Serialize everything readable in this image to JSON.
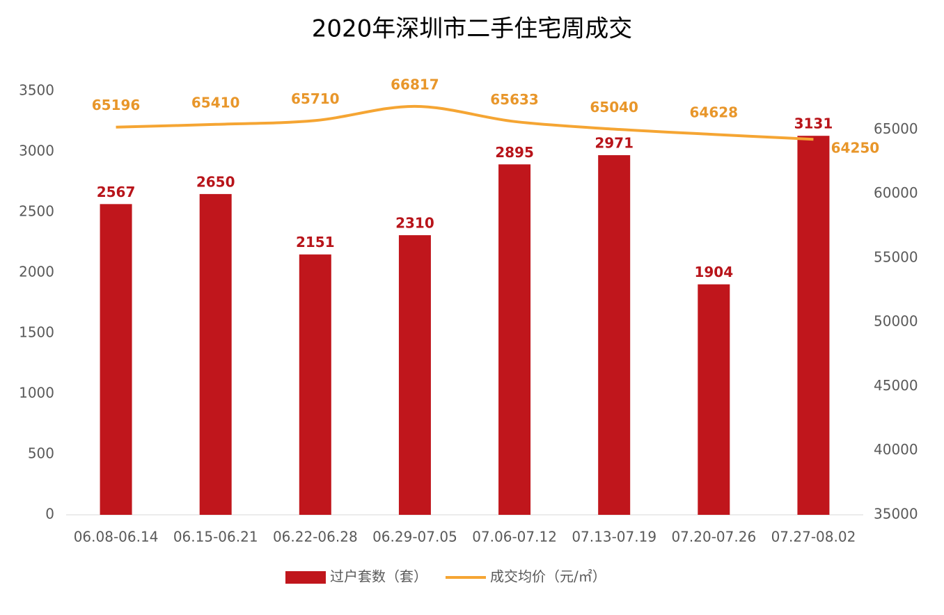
{
  "chart_data": {
    "type": "bar",
    "title": "2020年深圳市二手住宅周成交",
    "categories": [
      "06.08-06.14",
      "06.15-06.21",
      "06.22-06.28",
      "06.29-07.05",
      "07.06-07.12",
      "07.13-07.19",
      "07.20-07.26",
      "07.27-08.02"
    ],
    "series": [
      {
        "name": "过户套数（套）",
        "type": "bar",
        "color": "#c0161c",
        "values": [
          2567,
          2650,
          2151,
          2310,
          2895,
          2971,
          1904,
          3131
        ]
      },
      {
        "name": "成交均价（元/㎡）",
        "type": "line",
        "axis": "y2",
        "color": "#f5a533",
        "values": [
          65196,
          65410,
          65710,
          66817,
          65633,
          65040,
          64628,
          64250
        ]
      }
    ],
    "ylim": [
      0,
      3500
    ],
    "yticks": [
      0,
      500,
      1000,
      1500,
      2000,
      2500,
      3000,
      3500
    ],
    "y2lim": [
      35000,
      68000
    ],
    "y2ticks": [
      35000,
      40000,
      45000,
      50000,
      55000,
      60000,
      65000
    ],
    "legend": "bottom"
  }
}
